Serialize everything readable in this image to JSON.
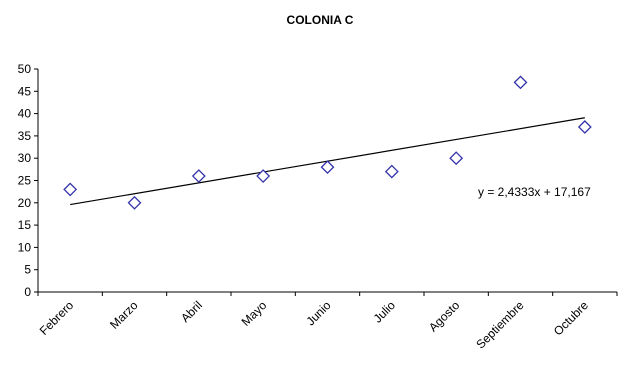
{
  "chart_data": {
    "type": "scatter",
    "title": "COLONIA C",
    "categories": [
      "Febrero",
      "Marzo",
      "Abril",
      "Mayo",
      "Junio",
      "Julio",
      "Agosto",
      "Septiembre",
      "Octubre"
    ],
    "series": [
      {
        "values": [
          23,
          20,
          26,
          26,
          28,
          27,
          30,
          47,
          37
        ]
      }
    ],
    "trendline": {
      "slope": 2.4333,
      "intercept": 17.167,
      "equation": "y = 2,4333x + 17,167"
    },
    "ylim": [
      0,
      50
    ],
    "yticks": [
      0,
      5,
      10,
      15,
      20,
      25,
      30,
      35,
      40,
      45,
      50
    ],
    "grid": false,
    "marker": "diamond",
    "marker_color": "#3333aa",
    "line_color": "#000000"
  }
}
